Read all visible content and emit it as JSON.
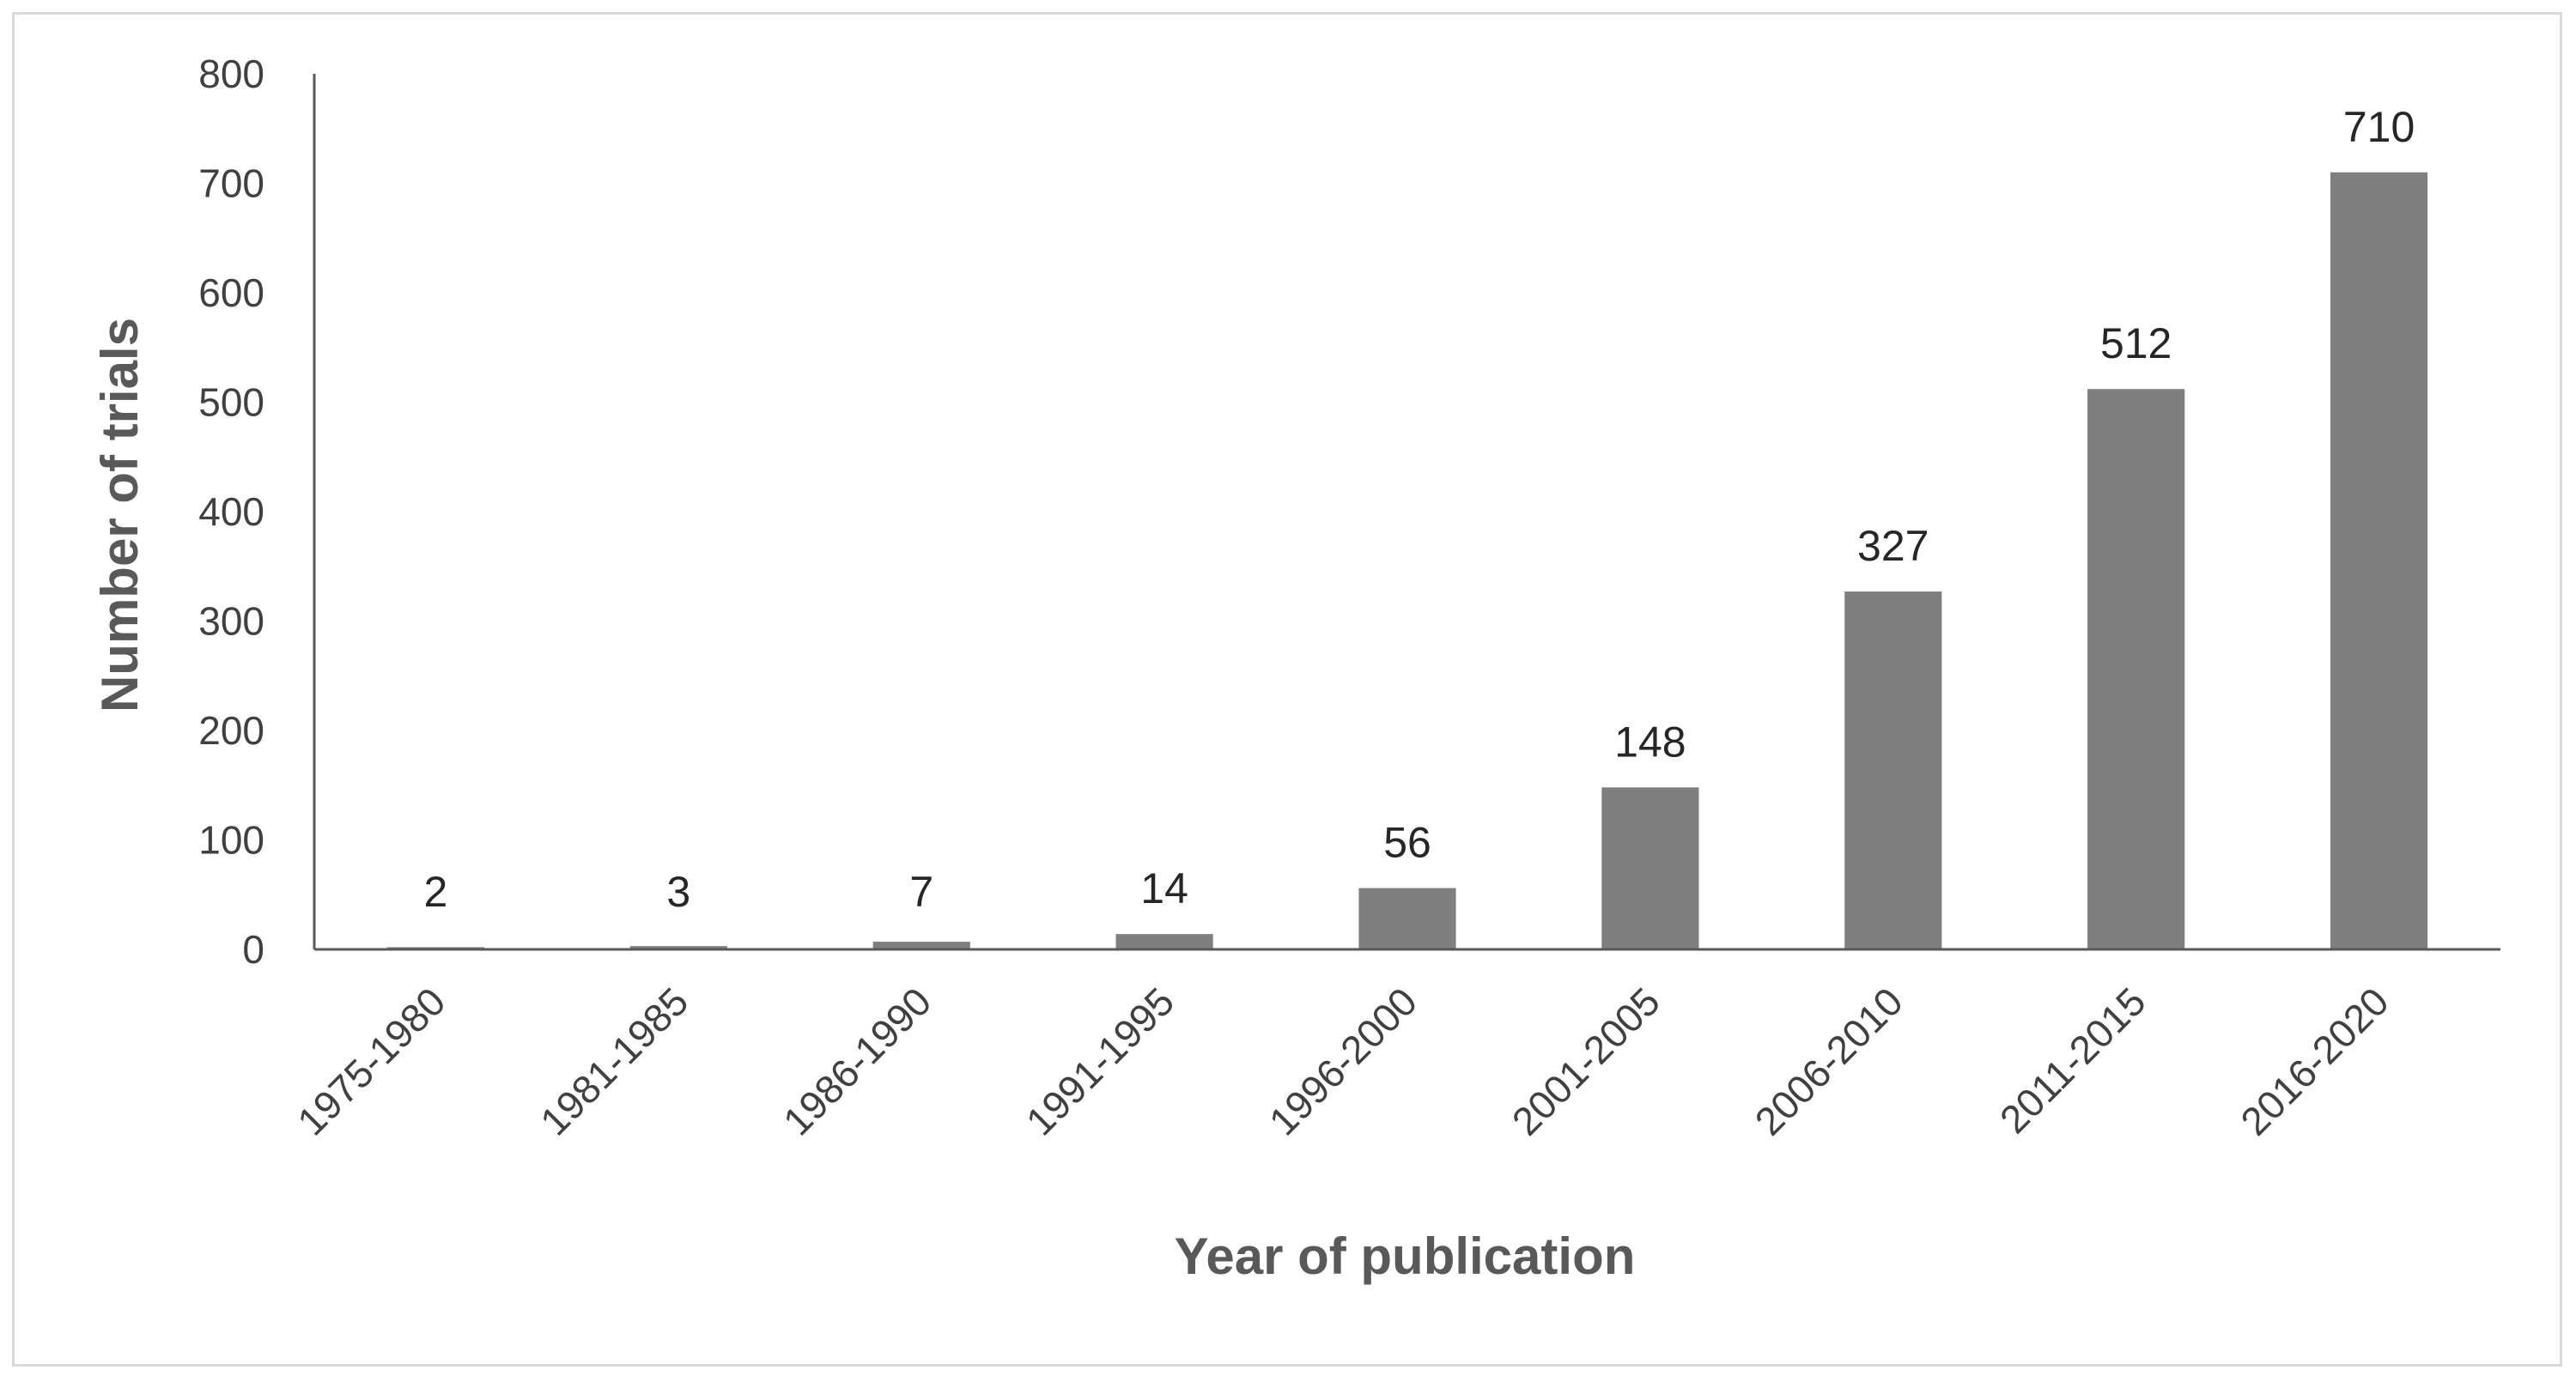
{
  "chart_data": {
    "type": "bar",
    "title": "",
    "xlabel": "Year of publication",
    "ylabel": "Number of trials",
    "categories": [
      "1975-1980",
      "1981-1985",
      "1986-1990",
      "1991-1995",
      "1996-2000",
      "2001-2005",
      "2006-2010",
      "2011-2015",
      "2016-2020"
    ],
    "values": [
      2,
      3,
      7,
      14,
      56,
      148,
      327,
      512,
      710
    ],
    "data_labels": [
      "2",
      "3",
      "7",
      "14",
      "56",
      "148",
      "327",
      "512",
      "710"
    ],
    "ylim": [
      0,
      800
    ],
    "yticks": [
      0,
      100,
      200,
      300,
      400,
      500,
      600,
      700,
      800
    ],
    "ytick_labels": [
      "0",
      "100",
      "200",
      "300",
      "400",
      "500",
      "600",
      "700",
      "800"
    ],
    "grid": false,
    "legend": "none",
    "colors": {
      "bar": "#7f7f7f",
      "axis": "#595959",
      "frame": "#d9d9d9"
    }
  }
}
